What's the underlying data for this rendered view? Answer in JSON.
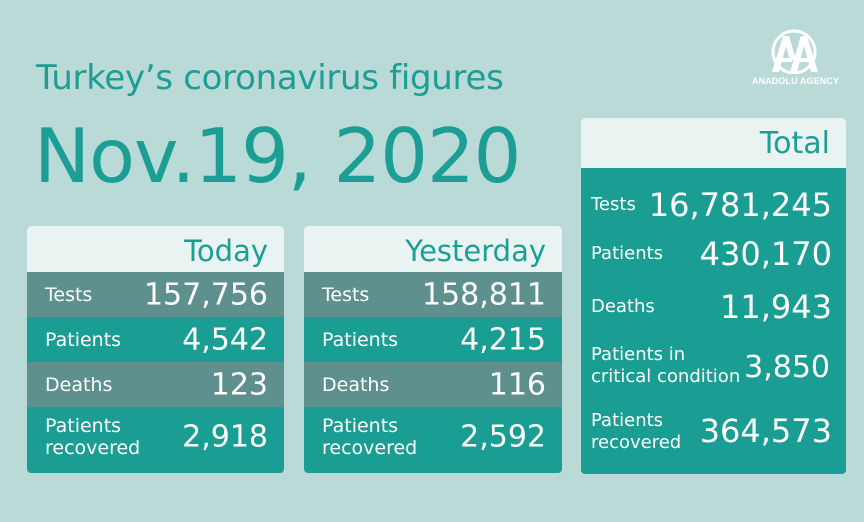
{
  "title": "Turkey’s coronavirus figures",
  "date": "Nov.19, 2020",
  "logo": {
    "text": "ANADOLU AGENCY",
    "mark": "AA"
  },
  "today": {
    "header": "Today",
    "rows": [
      {
        "label": "Tests",
        "value": "157,756"
      },
      {
        "label": "Patients",
        "value": "4,542"
      },
      {
        "label": "Deaths",
        "value": "123"
      },
      {
        "label_line1": "Patients",
        "label_line2": "recovered",
        "value": "2,918"
      }
    ]
  },
  "yesterday": {
    "header": "Yesterday",
    "rows": [
      {
        "label": "Tests",
        "value": "158,811"
      },
      {
        "label": "Patients",
        "value": "4,215"
      },
      {
        "label": "Deaths",
        "value": "116"
      },
      {
        "label_line1": "Patients",
        "label_line2": "recovered",
        "value": "2,592"
      }
    ]
  },
  "total": {
    "header": "Total",
    "rows": [
      {
        "label": "Tests",
        "value": "16,781,245"
      },
      {
        "label": "Patients",
        "value": "430,170"
      },
      {
        "label": "Deaths",
        "value": "11,943"
      },
      {
        "label_line1": "Patients in",
        "label_line2": "critical condition",
        "value": "3,850"
      },
      {
        "label_line1": "Patients",
        "label_line2": "recovered",
        "value": "364,573"
      }
    ]
  },
  "colors": {
    "background": "#b9dad7",
    "accent": "#1c9e94",
    "row_dark": "#5e918e",
    "row_teal": "#1a9e93",
    "header_bg": "#e8f3f2"
  }
}
